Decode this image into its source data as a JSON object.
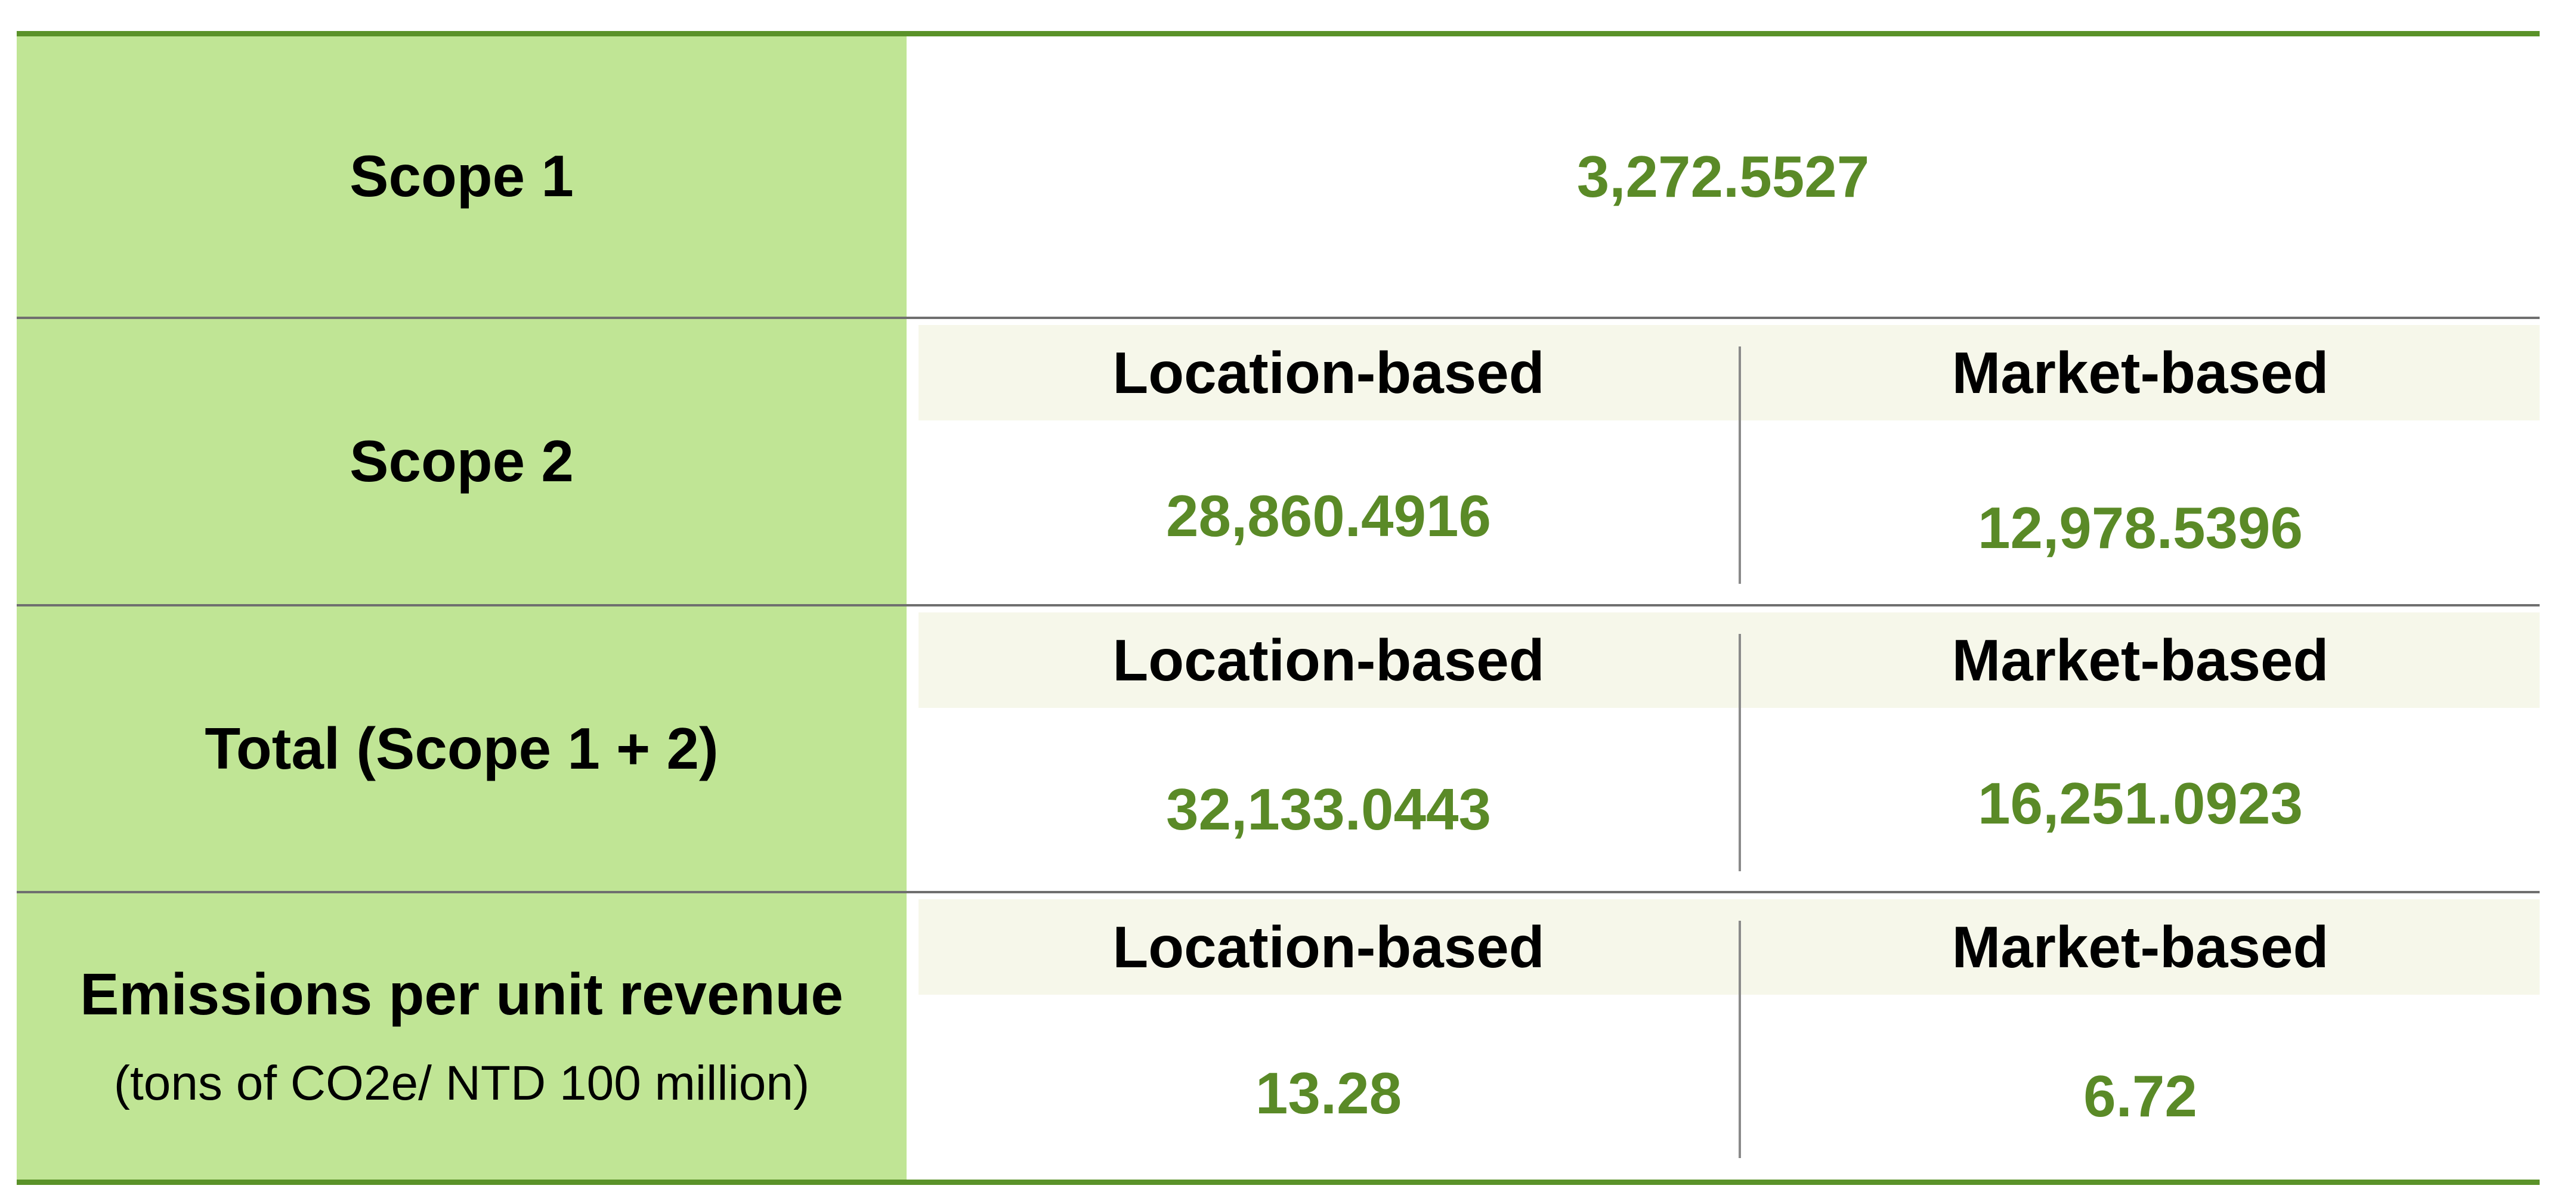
{
  "table": {
    "scope1": {
      "label": "Scope 1",
      "value": "3,272.5527"
    },
    "scope2": {
      "label": "Scope 2",
      "location_header": "Location-based",
      "market_header": "Market-based",
      "location_value": "28,860.4916",
      "market_value": "12,978.5396"
    },
    "total": {
      "label": "Total (Scope 1 + 2)",
      "location_header": "Location-based",
      "market_header": "Market-based",
      "location_value": "32,133.0443",
      "market_value": "16,251.0923"
    },
    "intensity": {
      "label": "Emissions per unit revenue",
      "sublabel": "(tons of CO2e/ NTD 100 million)",
      "location_header": "Location-based",
      "market_header": "Market-based",
      "location_value": "13.28",
      "market_value": "6.72"
    }
  },
  "colors": {
    "label_background": "#c0e595",
    "sub_header_background": "#f6f7ea",
    "value_text": "#5a8a27",
    "rule_green": "#5a9229",
    "rule_gray": "#6f6f6f"
  }
}
